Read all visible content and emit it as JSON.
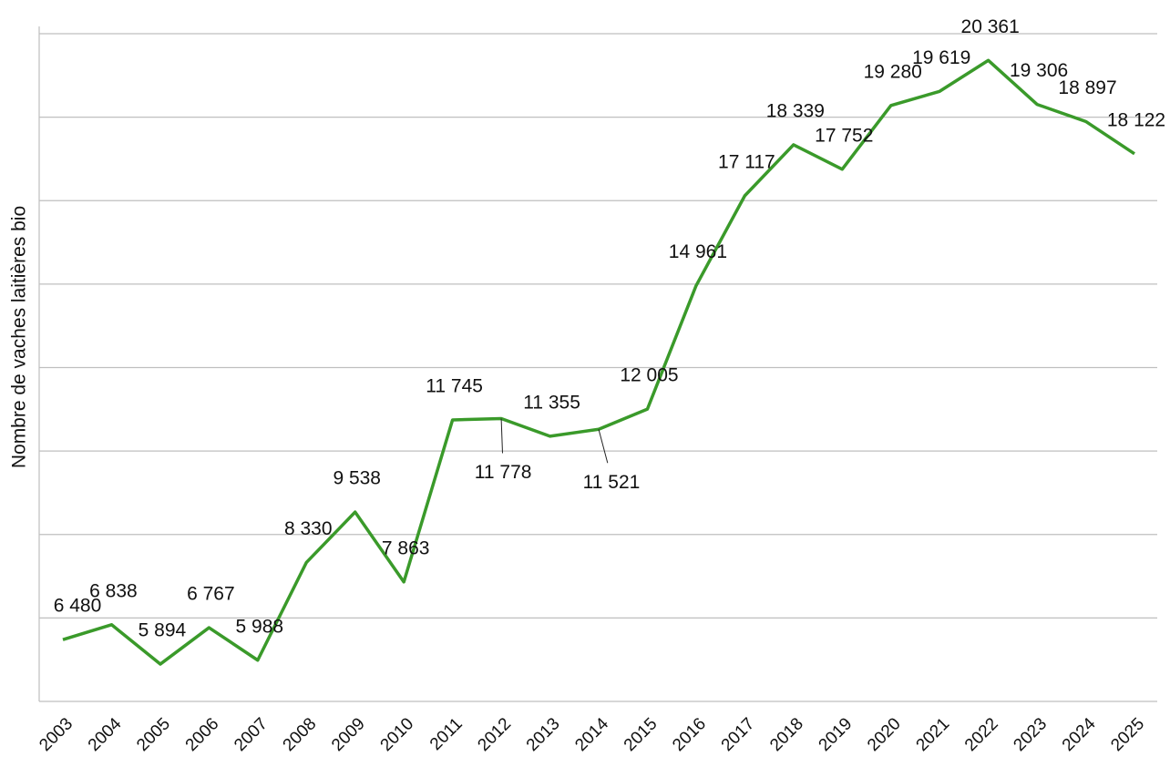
{
  "chart_data": {
    "type": "line",
    "y_label": "Nombre de vaches laitières bio",
    "categories": [
      "2003",
      "2004",
      "2005",
      "2006",
      "2007",
      "2008",
      "2009",
      "2010",
      "2011",
      "2012",
      "2013",
      "2014",
      "2015",
      "2016",
      "2017",
      "2018",
      "2019",
      "2020",
      "2021",
      "2022",
      "2023",
      "2024",
      "2025"
    ],
    "series": [
      {
        "name": "Vaches laitières bio",
        "color": "#3a9a2a",
        "values": [
          6480,
          6838,
          5894,
          6767,
          5988,
          8330,
          9538,
          7863,
          11745,
          11778,
          11355,
          11521,
          12005,
          14961,
          17117,
          18339,
          17752,
          19280,
          19619,
          20361,
          19306,
          18897,
          18122
        ],
        "value_labels": [
          "6 480",
          "6 838",
          "5 894",
          "6 767",
          "5 988",
          "8 330",
          "9 538",
          "7 863",
          "11 745",
          "11 778",
          "11 355",
          "11 521",
          "12 005",
          "14 961",
          "17 117",
          "18 339",
          "17 752",
          "19 280",
          "19 619",
          "20 361",
          "19 306",
          "18 897",
          "18 122"
        ]
      }
    ],
    "ylim": [
      5000,
      21000
    ],
    "yticks": [
      5000,
      7000,
      9000,
      11000,
      13000,
      15000,
      17000,
      19000,
      21000
    ],
    "grid": true
  }
}
